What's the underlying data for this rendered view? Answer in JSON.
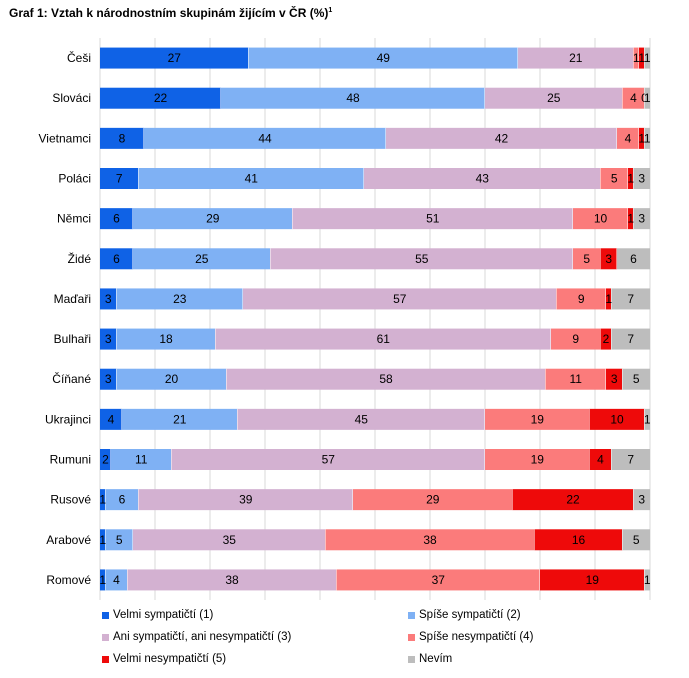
{
  "title": "Graf 1: Vztah k národnostním skupinám žijícím v ČR (%)",
  "title_footnote": "1",
  "colors": {
    "s1": "#0f62e6",
    "s2": "#7fb1f4",
    "s3": "#d3b1d1",
    "s4": "#fb7b7b",
    "s5": "#ee0a0a",
    "s6": "#bdbdbd",
    "grid": "#d9d9d9"
  },
  "chart_data": {
    "type": "bar",
    "orientation": "horizontal",
    "stacked": true,
    "xlim": [
      0,
      100
    ],
    "grid": true,
    "legend_position": "bottom",
    "categories": [
      "Češi",
      "Slováci",
      "Vietnamci",
      "Poláci",
      "Němci",
      "Židé",
      "Maďaři",
      "Bulhaři",
      "Číňané",
      "Ukrajinci",
      "Rumuni",
      "Rusové",
      "Arabové",
      "Romové"
    ],
    "series": [
      {
        "name": "Velmi sympatičtí (1)",
        "color_key": "s1",
        "values": [
          27,
          22,
          8,
          7,
          6,
          6,
          3,
          3,
          3,
          4,
          2,
          1,
          1,
          1
        ]
      },
      {
        "name": "Spíše sympatičtí (2)",
        "color_key": "s2",
        "values": [
          49,
          48,
          44,
          41,
          29,
          25,
          23,
          18,
          20,
          21,
          11,
          6,
          5,
          4
        ]
      },
      {
        "name": "Ani sympatičtí, ani nesympatičtí (3)",
        "color_key": "s3",
        "values": [
          21,
          25,
          42,
          43,
          51,
          55,
          57,
          61,
          58,
          45,
          57,
          39,
          35,
          38
        ]
      },
      {
        "name": "Spíše nesympatičtí (4)",
        "color_key": "s4",
        "values": [
          1,
          4,
          4,
          5,
          10,
          5,
          9,
          9,
          11,
          19,
          19,
          29,
          38,
          37
        ]
      },
      {
        "name": "Velmi nesympatičtí (5)",
        "color_key": "s5",
        "values": [
          1,
          0,
          1,
          1,
          1,
          3,
          1,
          2,
          3,
          10,
          4,
          22,
          16,
          19
        ]
      },
      {
        "name": "Nevím",
        "color_key": "s6",
        "values": [
          1,
          1,
          1,
          3,
          3,
          6,
          7,
          7,
          5,
          1,
          7,
          3,
          5,
          1
        ]
      }
    ]
  }
}
